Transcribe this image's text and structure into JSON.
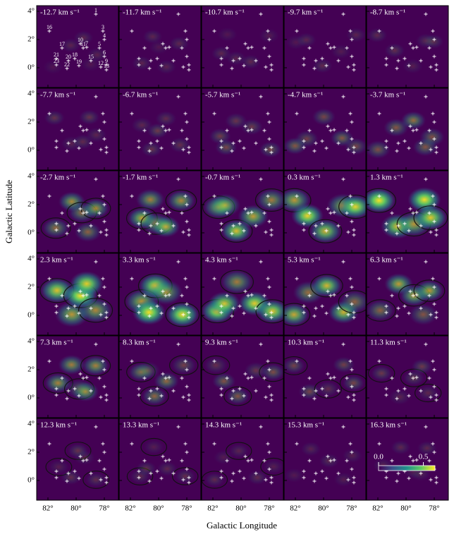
{
  "chart_data": {
    "type": "channel-map",
    "x_label": "Galactic Longitude",
    "y_label": "Galactic Latitude",
    "xlim": [
      82.8,
      77.0
    ],
    "ylim": [
      -1.4,
      4.4
    ],
    "xticks": [
      {
        "value": 82,
        "label": "82°"
      },
      {
        "value": 80,
        "label": "80°"
      },
      {
        "value": 78,
        "label": "78°"
      }
    ],
    "yticks": [
      {
        "value": 0,
        "label": "0°"
      },
      {
        "value": 2,
        "label": "2°"
      },
      {
        "value": 4,
        "label": "4°"
      }
    ],
    "panels": [
      "-12.7 km s⁻¹",
      "-11.7 km s⁻¹",
      "-10.7 km s⁻¹",
      "-9.7 km s⁻¹",
      "-8.7 km s⁻¹",
      "-7.7 km s⁻¹",
      "-6.7 km s⁻¹",
      "-5.7 km s⁻¹",
      "-4.7 km s⁻¹",
      "-3.7 km s⁻¹",
      "-2.7 km s⁻¹",
      "-1.7 km s⁻¹",
      "-0.7 km s⁻¹",
      "0.3 km s⁻¹",
      "1.3 km s⁻¹",
      "2.3 km s⁻¹",
      "3.3 km s⁻¹",
      "4.3 km s⁻¹",
      "5.3 km s⁻¹",
      "6.3 km s⁻¹",
      "7.3 km s⁻¹",
      "8.3 km s⁻¹",
      "9.3 km s⁻¹",
      "10.3 km s⁻¹",
      "11.3 km s⁻¹",
      "12.3 km s⁻¹",
      "13.3 km s⁻¹",
      "14.3 km s⁻¹",
      "15.3 km s⁻¹",
      "16.3 km s⁻¹"
    ],
    "sources": [
      {
        "label": "1",
        "l": 78.6,
        "b": 3.8
      },
      {
        "label": "16",
        "l": 81.9,
        "b": 2.6
      },
      {
        "label": "3",
        "l": 78.1,
        "b": 2.6
      },
      {
        "label": "4",
        "l": 78.0,
        "b": 2.0
      },
      {
        "label": "17",
        "l": 81.0,
        "b": 1.4
      },
      {
        "label": "10",
        "l": 79.7,
        "b": 1.7
      },
      {
        "label": "11",
        "l": 79.5,
        "b": 1.4
      },
      {
        "label": "7",
        "l": 79.25,
        "b": 1.45
      },
      {
        "label": "5",
        "l": 78.35,
        "b": 1.4
      },
      {
        "label": "21",
        "l": 81.4,
        "b": 0.65
      },
      {
        "label": "20",
        "l": 80.55,
        "b": 0.5
      },
      {
        "label": "18",
        "l": 80.1,
        "b": 0.65
      },
      {
        "label": "15",
        "l": 78.95,
        "b": 0.5
      },
      {
        "label": "6",
        "l": 78.0,
        "b": 0.8
      },
      {
        "label": "23",
        "l": 81.4,
        "b": 0.2
      },
      {
        "label": "22",
        "l": 80.65,
        "b": -0.05
      },
      {
        "label": "19",
        "l": 79.8,
        "b": 0.15
      },
      {
        "label": "12",
        "l": 78.25,
        "b": 0.05
      },
      {
        "label": "9",
        "l": 77.85,
        "b": 0.2
      },
      {
        "label": "13",
        "l": 77.85,
        "b": -0.15
      }
    ],
    "colorbar": {
      "lim": [
        0,
        0.63
      ],
      "ticks": [
        {
          "value": 0,
          "label": "0.0"
        },
        {
          "value": 0.5,
          "label": "0.5"
        }
      ]
    }
  }
}
